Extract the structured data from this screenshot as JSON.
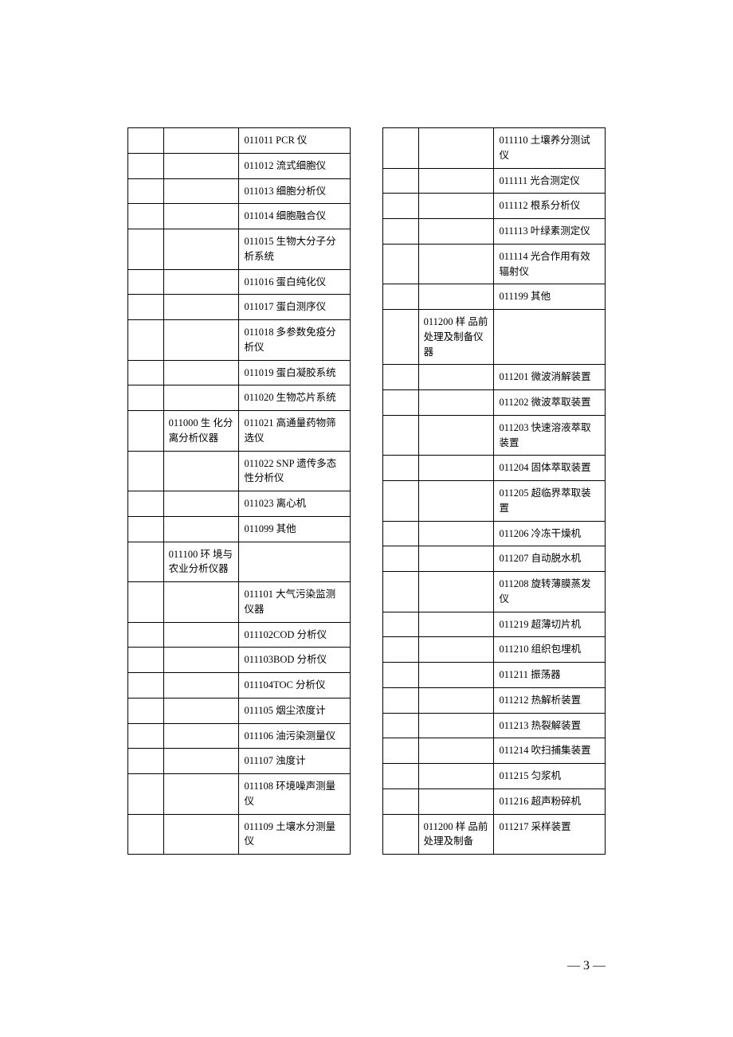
{
  "pageNumber": "— 3 —",
  "leftTable": {
    "rows": [
      {
        "col1": "",
        "col2": "",
        "col3": "011011 PCR 仪"
      },
      {
        "col1": "",
        "col2": "",
        "col3": "011012 流式细胞仪"
      },
      {
        "col1": "",
        "col2": "",
        "col3": "011013 细胞分析仪"
      },
      {
        "col1": "",
        "col2": "",
        "col3": "011014 细胞融合仪"
      },
      {
        "col1": "",
        "col2": "",
        "col3": "011015 生物大分子分析系统"
      },
      {
        "col1": "",
        "col2": "",
        "col3": "011016 蛋白纯化仪"
      },
      {
        "col1": "",
        "col2": "",
        "col3": "011017 蛋白测序仪"
      },
      {
        "col1": "",
        "col2": "",
        "col3": "011018 多参数免疫分析仪"
      },
      {
        "col1": "",
        "col2": "",
        "col3": "011019 蛋白凝胶系统"
      },
      {
        "col1": "",
        "col2": "",
        "col3": "011020 生物芯片系统"
      },
      {
        "col1": "",
        "col2": "011000 生 化分离分析仪器",
        "col3": "011021 高通量药物筛选仪"
      },
      {
        "col1": "",
        "col2": "",
        "col3": "011022 SNP 遗传多态性分析仪"
      },
      {
        "col1": "",
        "col2": "",
        "col3": "011023 离心机"
      },
      {
        "col1": "",
        "col2": "",
        "col3": "011099 其他"
      },
      {
        "col1": "",
        "col2": "011100 环 境与农业分析仪器",
        "col3": ""
      },
      {
        "col1": "",
        "col2": "",
        "col3": "011101 大气污染监测仪器"
      },
      {
        "col1": "",
        "col2": "",
        "col3": "011102COD 分析仪"
      },
      {
        "col1": "",
        "col2": "",
        "col3": "011103BOD 分析仪"
      },
      {
        "col1": "",
        "col2": "",
        "col3": "011104TOC 分析仪"
      },
      {
        "col1": "",
        "col2": "",
        "col3": "011105 烟尘浓度计"
      },
      {
        "col1": "",
        "col2": "",
        "col3": "011106 油污染测量仪"
      },
      {
        "col1": "",
        "col2": "",
        "col3": "011107 浊度计"
      },
      {
        "col1": "",
        "col2": "",
        "col3": "011108 环境噪声测量仪"
      },
      {
        "col1": "",
        "col2": "",
        "col3": "011109 土壤水分测量仪"
      }
    ]
  },
  "rightTable": {
    "rows": [
      {
        "col1": "",
        "col2": "",
        "col3": "011110 土壤养分测试仪"
      },
      {
        "col1": "",
        "col2": "",
        "col3": "011111 光合测定仪"
      },
      {
        "col1": "",
        "col2": "",
        "col3": "011112 根系分析仪"
      },
      {
        "col1": "",
        "col2": "",
        "col3": "011113 叶绿素测定仪"
      },
      {
        "col1": "",
        "col2": "",
        "col3": "011114 光合作用有效辐射仪"
      },
      {
        "col1": "",
        "col2": "",
        "col3": "011199 其他"
      },
      {
        "col1": "",
        "col2": "011200 样 品前处理及制备仪器",
        "col3": ""
      },
      {
        "col1": "",
        "col2": "",
        "col3": "011201 微波消解装置"
      },
      {
        "col1": "",
        "col2": "",
        "col3": "011202 微波萃取装置"
      },
      {
        "col1": "",
        "col2": "",
        "col3": "011203 快速溶液萃取装置"
      },
      {
        "col1": "",
        "col2": "",
        "col3": "011204 固体萃取装置"
      },
      {
        "col1": "",
        "col2": "",
        "col3": "011205 超临界萃取装置"
      },
      {
        "col1": "",
        "col2": "",
        "col3": "011206 冷冻干燥机"
      },
      {
        "col1": "",
        "col2": "",
        "col3": "011207 自动脱水机"
      },
      {
        "col1": "",
        "col2": "",
        "col3": "011208 旋转薄膜蒸发仪"
      },
      {
        "col1": "",
        "col2": "",
        "col3": "011219 超薄切片机"
      },
      {
        "col1": "",
        "col2": "",
        "col3": "011210 组织包埋机"
      },
      {
        "col1": "",
        "col2": "",
        "col3": "011211 振荡器"
      },
      {
        "col1": "",
        "col2": "",
        "col3": "011212 热解析装置"
      },
      {
        "col1": "",
        "col2": "",
        "col3": "011213 热裂解装置"
      },
      {
        "col1": "",
        "col2": "",
        "col3": "011214 吹扫捕集装置"
      },
      {
        "col1": "",
        "col2": "",
        "col3": "011215 匀浆机"
      },
      {
        "col1": "",
        "col2": "",
        "col3": "011216 超声粉碎机"
      },
      {
        "col1": "",
        "col2": "011200 样 品前处理及制备",
        "col3": "011217 采样装置"
      }
    ]
  }
}
